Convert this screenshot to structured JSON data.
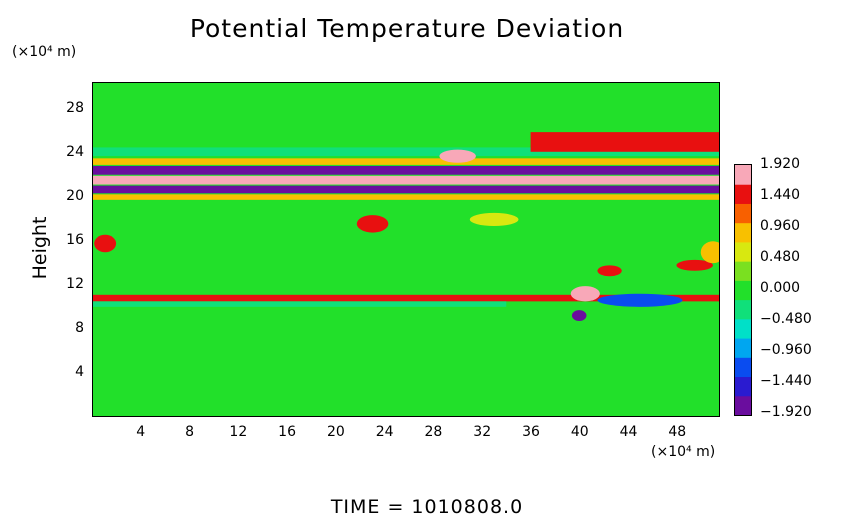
{
  "chart_data": {
    "type": "heatmap",
    "title": "Potential Temperature Deviation",
    "ylabel": "Height",
    "y_unit_label": "(×10⁴ m)",
    "x_unit_label": "(×10⁴ m)",
    "footer": "TIME  =  1010808.0",
    "xlim": [
      0,
      51.5
    ],
    "ylim": [
      0,
      30.5
    ],
    "x_ticks": [
      "4",
      "8",
      "12",
      "16",
      "20",
      "24",
      "28",
      "32",
      "36",
      "40",
      "44",
      "48"
    ],
    "y_ticks": [
      "4",
      "8",
      "12",
      "16",
      "20",
      "24",
      "28"
    ],
    "colorbar": {
      "labels": [
        "1.920",
        "1.440",
        "0.960",
        "0.480",
        "0.000",
        "−0.480",
        "−0.960",
        "−1.440",
        "−1.920"
      ],
      "min": -1.92,
      "max": 1.92,
      "colors": [
        "#6a0d9e",
        "#2a1bd0",
        "#0a4cf0",
        "#00a6f0",
        "#00e0c8",
        "#10e07a",
        "#22e02a",
        "#7ae020",
        "#d8e810",
        "#f8c000",
        "#f86000",
        "#e81010",
        "#f8a8b8"
      ]
    },
    "features": [
      {
        "kind": "band",
        "x": [
          0,
          51.5
        ],
        "y": [
          20.4,
          21.1
        ],
        "value": -1.92
      },
      {
        "kind": "band",
        "x": [
          0,
          51.5
        ],
        "y": [
          21.2,
          22.0
        ],
        "value": 1.92
      },
      {
        "kind": "band",
        "x": [
          0,
          51.5
        ],
        "y": [
          22.1,
          22.9
        ],
        "value": -1.92
      },
      {
        "kind": "band",
        "x": [
          0,
          51.5
        ],
        "y": [
          19.8,
          20.3
        ],
        "value": 0.96
      },
      {
        "kind": "band",
        "x": [
          0,
          51.5
        ],
        "y": [
          23.0,
          23.6
        ],
        "value": 0.96
      },
      {
        "kind": "band",
        "x": [
          0,
          51.5
        ],
        "y": [
          23.8,
          24.6
        ],
        "value": -0.48
      },
      {
        "kind": "band",
        "x": [
          36,
          51.5
        ],
        "y": [
          24.2,
          26.0
        ],
        "value": 1.44
      },
      {
        "kind": "band",
        "x": [
          0,
          51.5
        ],
        "y": [
          10.5,
          11.1
        ],
        "value": 1.44
      },
      {
        "kind": "band",
        "x": [
          0,
          34
        ],
        "y": [
          10.0,
          10.5
        ],
        "value": -0.48
      },
      {
        "kind": "blob",
        "x": 40.5,
        "y": 11.2,
        "rx": 1.2,
        "ry": 0.7,
        "value": 1.92
      },
      {
        "kind": "blob",
        "x": 45.0,
        "y": 10.6,
        "rx": 3.5,
        "ry": 0.6,
        "value": -1.44
      },
      {
        "kind": "blob",
        "x": 40.0,
        "y": 9.2,
        "rx": 0.6,
        "ry": 0.5,
        "value": -1.92
      },
      {
        "kind": "blob",
        "x": 42.5,
        "y": 13.3,
        "rx": 1.0,
        "ry": 0.5,
        "value": 1.44
      },
      {
        "kind": "blob",
        "x": 49.5,
        "y": 13.8,
        "rx": 1.5,
        "ry": 0.5,
        "value": 1.44
      },
      {
        "kind": "blob",
        "x": 1.0,
        "y": 15.8,
        "rx": 0.9,
        "ry": 0.8,
        "value": 1.44
      },
      {
        "kind": "blob",
        "x": 23.0,
        "y": 17.6,
        "rx": 1.3,
        "ry": 0.8,
        "value": 1.44
      },
      {
        "kind": "blob",
        "x": 51.0,
        "y": 15.0,
        "rx": 1.0,
        "ry": 1.0,
        "value": 0.96
      },
      {
        "kind": "blob",
        "x": 30.0,
        "y": 23.8,
        "rx": 1.5,
        "ry": 0.6,
        "value": 1.92
      },
      {
        "kind": "blob",
        "x": 33.0,
        "y": 18.0,
        "rx": 2.0,
        "ry": 0.6,
        "value": 0.48
      }
    ]
  }
}
